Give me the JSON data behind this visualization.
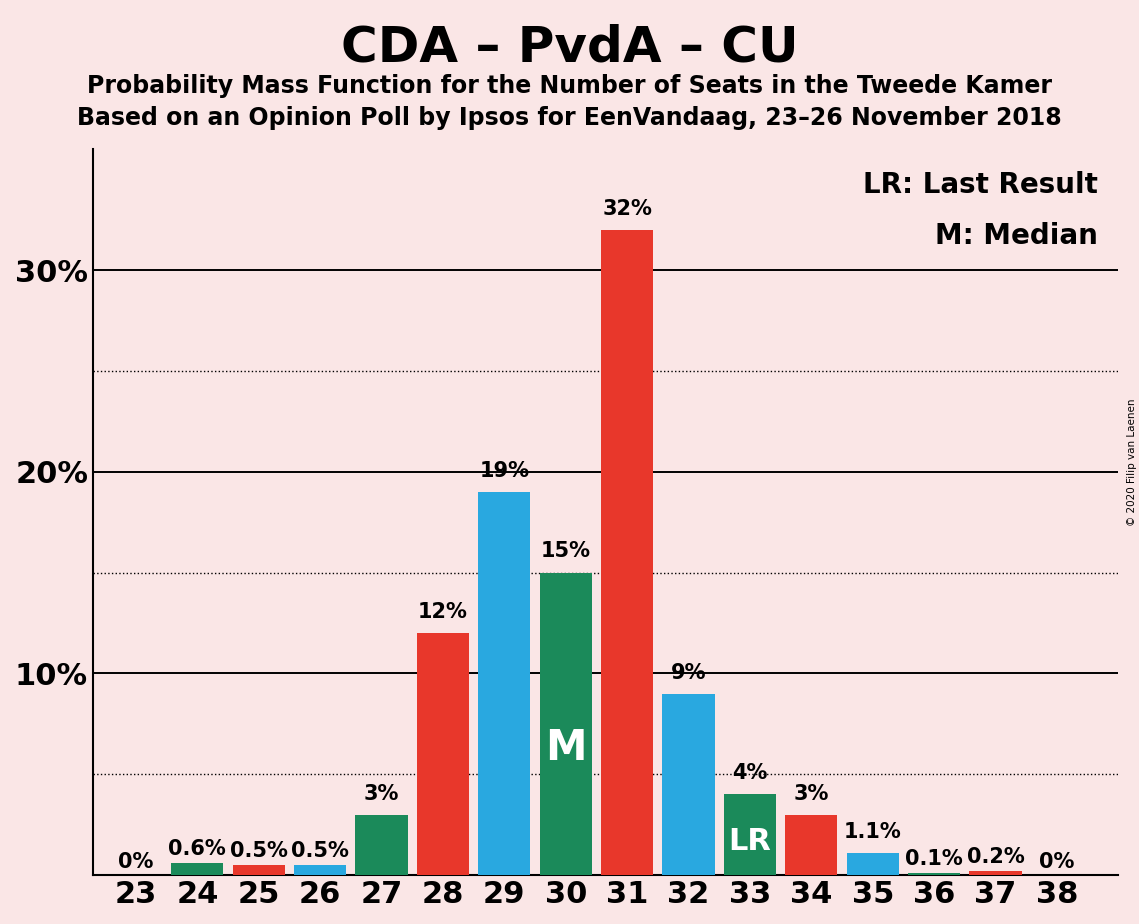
{
  "title": "CDA – PvdA – CU",
  "subtitle1": "Probability Mass Function for the Number of Seats in the Tweede Kamer",
  "subtitle2": "Based on an Opinion Poll by Ipsos for EenVandaag, 23–26 November 2018",
  "copyright": "© 2020 Filip van Laenen",
  "legend_lr": "LR: Last Result",
  "legend_m": "M: Median",
  "seats": [
    23,
    24,
    25,
    26,
    27,
    28,
    29,
    30,
    31,
    32,
    33,
    34,
    35,
    36,
    37,
    38
  ],
  "probabilities": [
    0.0,
    0.6,
    0.5,
    0.5,
    3.0,
    12.0,
    19.0,
    15.0,
    32.0,
    9.0,
    4.0,
    3.0,
    1.1,
    0.1,
    0.2,
    0.0
  ],
  "bar_colors": [
    "#E8372B",
    "#1B8A5A",
    "#E8372B",
    "#29A8E0",
    "#1B8A5A",
    "#E8372B",
    "#29A8E0",
    "#1B8A5A",
    "#E8372B",
    "#29A8E0",
    "#1B8A5A",
    "#E8372B",
    "#29A8E0",
    "#1B8A5A",
    "#E8372B",
    "#E8372B"
  ],
  "label_values": [
    "0%",
    "0.6%",
    "0.5%",
    "0.5%",
    "3%",
    "12%",
    "19%",
    "15%",
    "32%",
    "9%",
    "4%",
    "3%",
    "1.1%",
    "0.1%",
    "0.2%",
    "0%"
  ],
  "median_seat": 30,
  "lr_seat": 33,
  "background_color": "#FAE6E6",
  "yticks": [
    0,
    10,
    20,
    30
  ],
  "ytick_labels": [
    "",
    "10%",
    "20%",
    "30%"
  ],
  "grid_dotted": [
    5,
    15,
    25
  ],
  "grid_solid": [
    10,
    20,
    30
  ],
  "ylim": [
    0,
    36
  ],
  "xlim": [
    22.3,
    39.0
  ],
  "title_fontsize": 36,
  "subtitle_fontsize": 17,
  "axis_fontsize": 22,
  "bar_label_fontsize": 15,
  "legend_fontsize": 20,
  "bar_width": 0.85
}
